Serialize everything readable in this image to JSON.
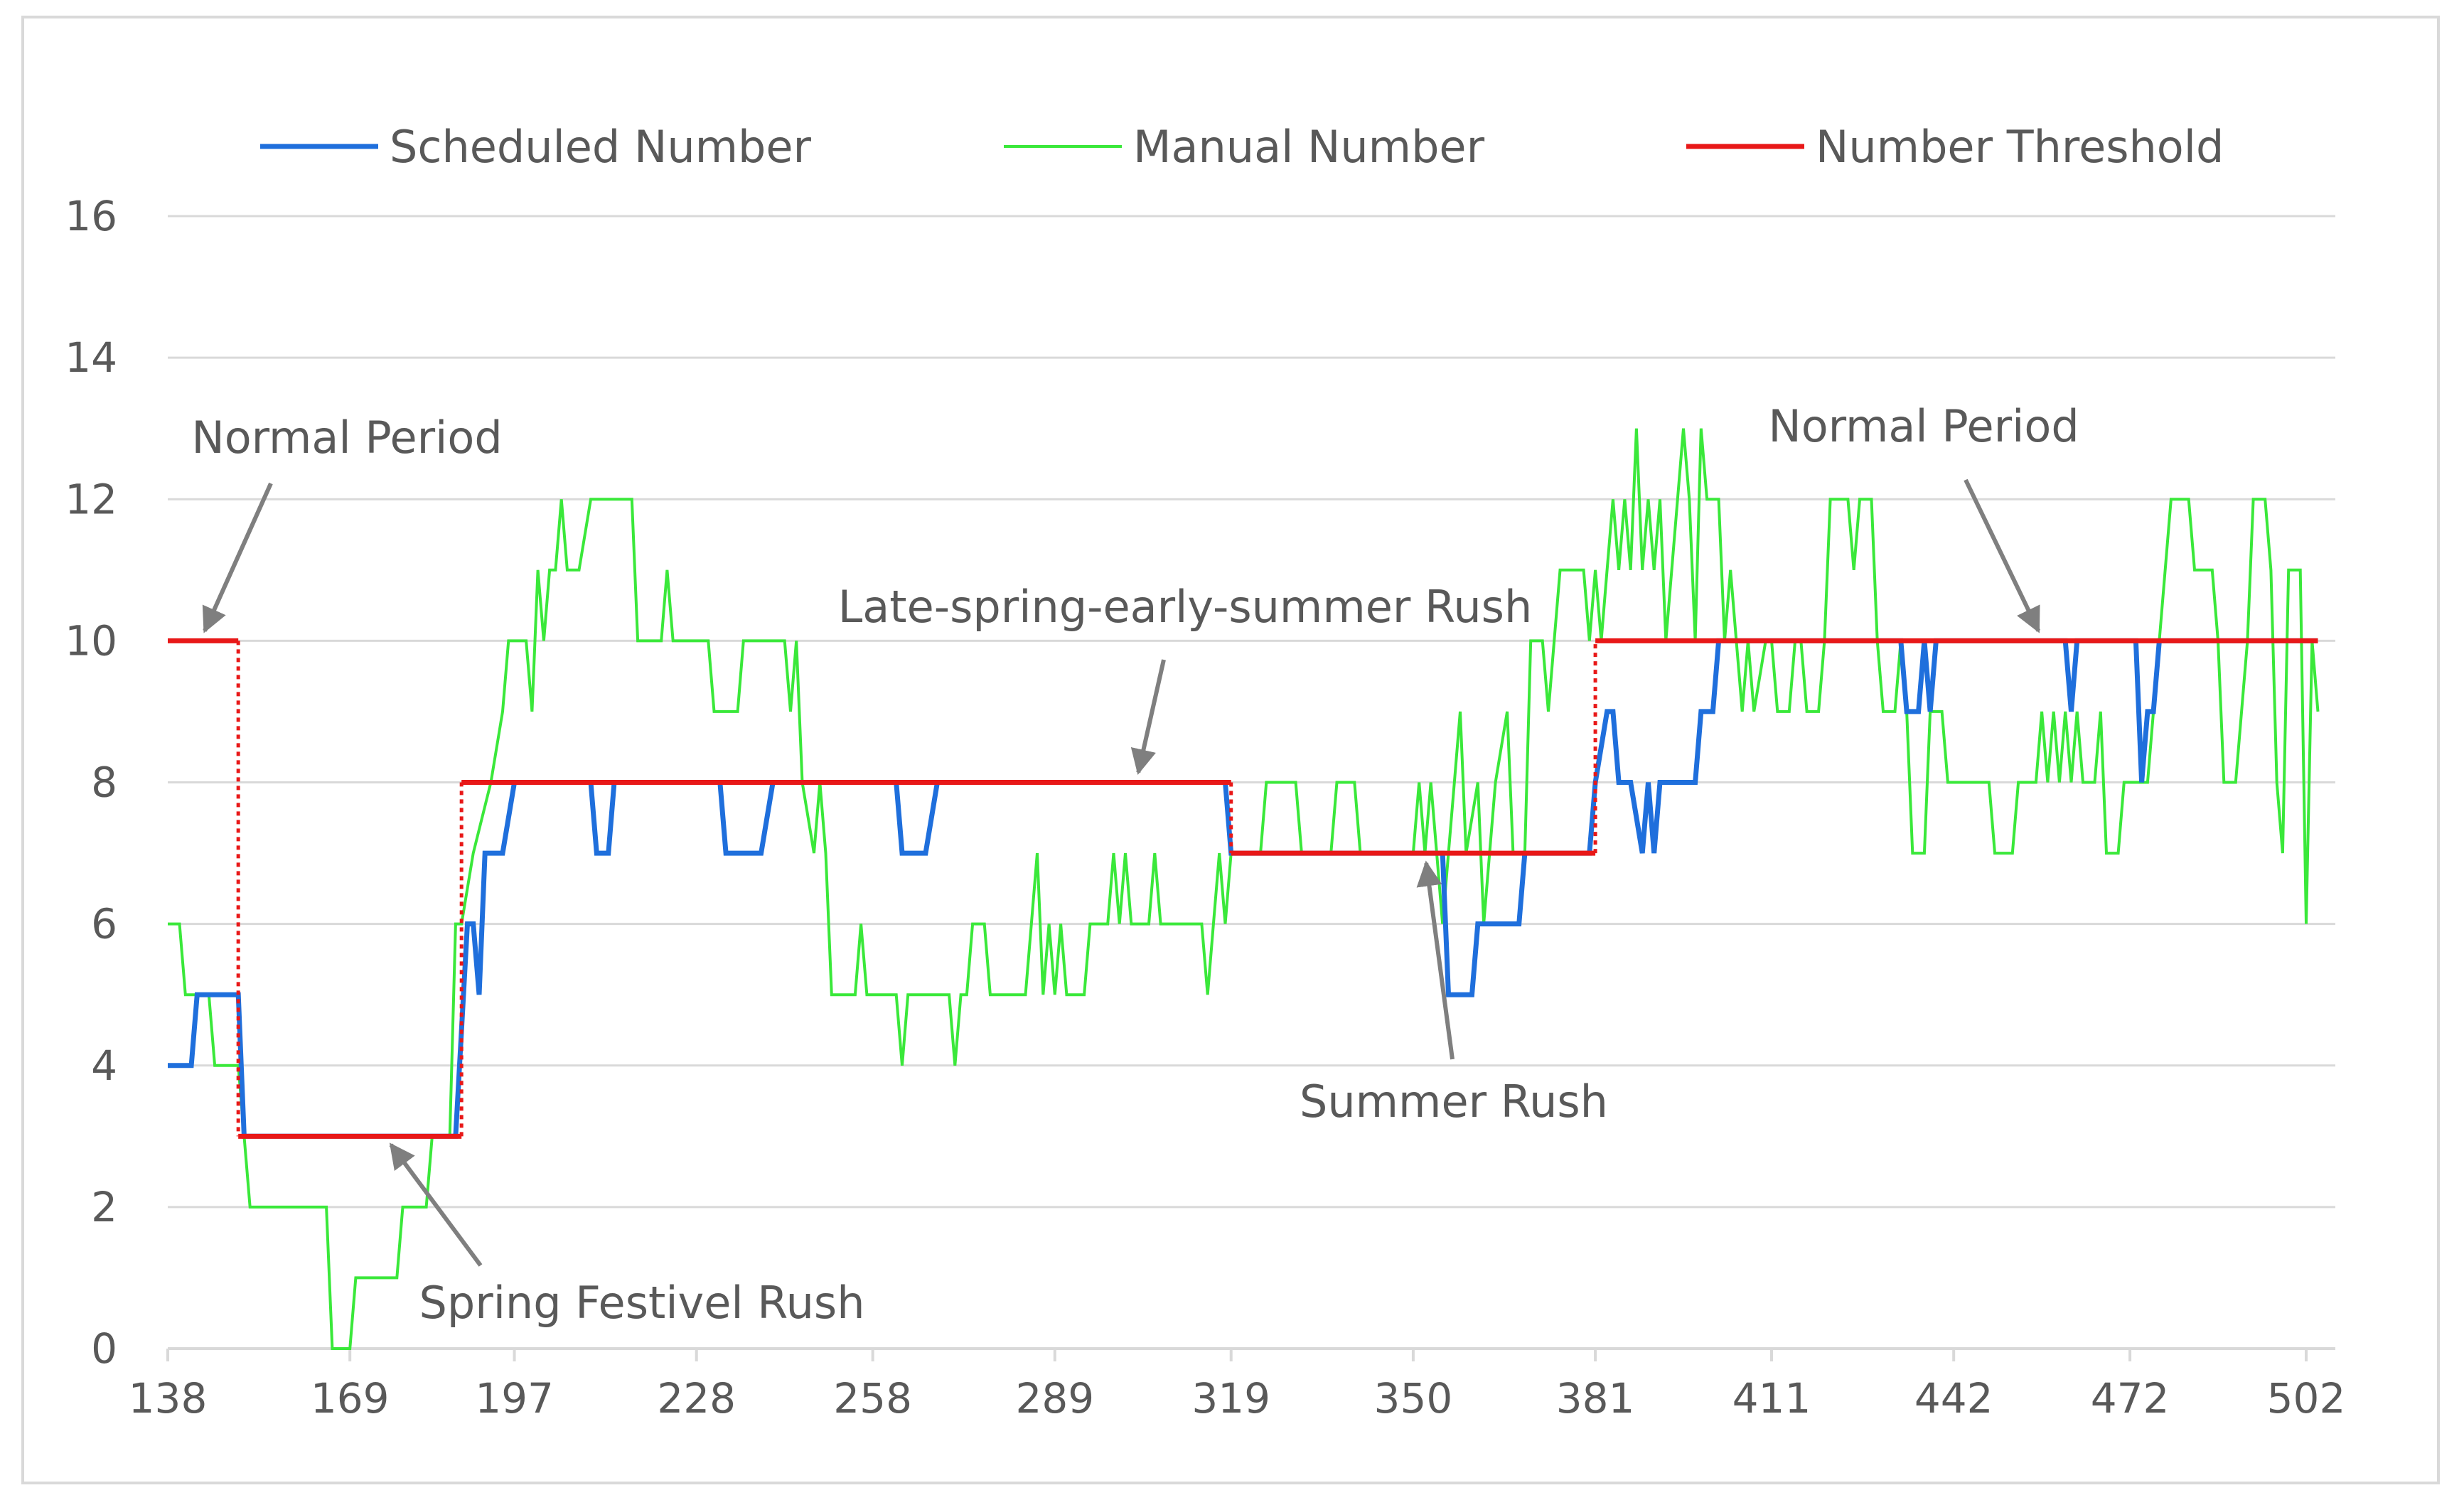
{
  "chart_data": {
    "type": "line",
    "title": "",
    "xlabel": "",
    "ylabel": "",
    "xlim": [
      138,
      505
    ],
    "ylim": [
      0,
      16
    ],
    "x_ticks": [
      138,
      169,
      197,
      228,
      258,
      289,
      319,
      350,
      381,
      411,
      442,
      472,
      502
    ],
    "y_ticks": [
      0,
      2,
      4,
      6,
      8,
      10,
      12,
      14,
      16
    ],
    "grid": "horizontal",
    "legend_position": "top",
    "series": [
      {
        "name": "Scheduled Number",
        "color": "#1f6fdc",
        "points": [
          [
            138,
            4
          ],
          [
            142,
            4
          ],
          [
            143,
            5
          ],
          [
            148,
            5
          ],
          [
            150,
            5
          ],
          [
            151,
            3
          ],
          [
            186,
            3
          ],
          [
            187,
            3
          ],
          [
            189,
            6
          ],
          [
            190,
            6
          ],
          [
            191,
            5
          ],
          [
            192,
            7
          ],
          [
            195,
            7
          ],
          [
            197,
            8
          ],
          [
            210,
            8
          ],
          [
            211,
            7
          ],
          [
            213,
            7
          ],
          [
            214,
            8
          ],
          [
            232,
            8
          ],
          [
            233,
            7
          ],
          [
            239,
            7
          ],
          [
            241,
            8
          ],
          [
            255,
            8
          ],
          [
            256,
            8
          ],
          [
            262,
            8
          ],
          [
            263,
            7
          ],
          [
            267,
            7
          ],
          [
            269,
            8
          ],
          [
            318,
            8
          ],
          [
            319,
            7
          ],
          [
            321,
            7
          ],
          [
            322,
            7
          ],
          [
            355,
            7
          ],
          [
            356,
            5
          ],
          [
            360,
            5
          ],
          [
            361,
            6
          ],
          [
            365,
            6
          ],
          [
            366,
            6
          ],
          [
            368,
            6
          ],
          [
            369,
            7
          ],
          [
            380,
            7
          ],
          [
            381,
            8
          ],
          [
            383,
            9
          ],
          [
            384,
            9
          ],
          [
            385,
            8
          ],
          [
            387,
            8
          ],
          [
            389,
            7
          ],
          [
            390,
            8
          ],
          [
            391,
            7
          ],
          [
            392,
            8
          ],
          [
            398,
            8
          ],
          [
            399,
            9
          ],
          [
            401,
            9
          ],
          [
            402,
            10
          ],
          [
            433,
            10
          ],
          [
            434,
            9
          ],
          [
            436,
            9
          ],
          [
            437,
            10
          ],
          [
            438,
            9
          ],
          [
            439,
            10
          ],
          [
            461,
            10
          ],
          [
            462,
            9
          ],
          [
            463,
            10
          ],
          [
            473,
            10
          ],
          [
            474,
            8
          ],
          [
            475,
            9
          ],
          [
            476,
            9
          ],
          [
            477,
            10
          ],
          [
            504,
            10
          ]
        ]
      },
      {
        "name": "Manual Number",
        "color": "#3ae83a",
        "points": [
          [
            138,
            6
          ],
          [
            140,
            6
          ],
          [
            141,
            5
          ],
          [
            145,
            5
          ],
          [
            146,
            4
          ],
          [
            150,
            4
          ],
          [
            151,
            3
          ],
          [
            152,
            2
          ],
          [
            165,
            2
          ],
          [
            166,
            0
          ],
          [
            169,
            0
          ],
          [
            170,
            1
          ],
          [
            177,
            1
          ],
          [
            178,
            2
          ],
          [
            182,
            2
          ],
          [
            183,
            3
          ],
          [
            186,
            3
          ],
          [
            187,
            6
          ],
          [
            188,
            6
          ],
          [
            190,
            7
          ],
          [
            193,
            8
          ],
          [
            195,
            9
          ],
          [
            196,
            10
          ],
          [
            199,
            10
          ],
          [
            200,
            9
          ],
          [
            201,
            11
          ],
          [
            202,
            10
          ],
          [
            203,
            11
          ],
          [
            204,
            11
          ],
          [
            205,
            12
          ],
          [
            206,
            11
          ],
          [
            208,
            11
          ],
          [
            210,
            12
          ],
          [
            217,
            12
          ],
          [
            218,
            10
          ],
          [
            222,
            10
          ],
          [
            223,
            11
          ],
          [
            224,
            10
          ],
          [
            225,
            10
          ],
          [
            230,
            10
          ],
          [
            231,
            9
          ],
          [
            235,
            9
          ],
          [
            236,
            10
          ],
          [
            243,
            10
          ],
          [
            244,
            9
          ],
          [
            245,
            10
          ],
          [
            246,
            8
          ],
          [
            248,
            7
          ],
          [
            249,
            8
          ],
          [
            250,
            7
          ],
          [
            251,
            5
          ],
          [
            255,
            5
          ],
          [
            256,
            6
          ],
          [
            257,
            5
          ],
          [
            262,
            5
          ],
          [
            263,
            4
          ],
          [
            264,
            5
          ],
          [
            271,
            5
          ],
          [
            272,
            4
          ],
          [
            273,
            5
          ],
          [
            274,
            5
          ],
          [
            275,
            6
          ],
          [
            277,
            6
          ],
          [
            278,
            5
          ],
          [
            284,
            5
          ],
          [
            285,
            6
          ],
          [
            286,
            7
          ],
          [
            287,
            5
          ],
          [
            288,
            6
          ],
          [
            289,
            5
          ],
          [
            290,
            6
          ],
          [
            291,
            5
          ],
          [
            294,
            5
          ],
          [
            295,
            6
          ],
          [
            298,
            6
          ],
          [
            299,
            7
          ],
          [
            300,
            6
          ],
          [
            301,
            7
          ],
          [
            302,
            6
          ],
          [
            305,
            6
          ],
          [
            306,
            7
          ],
          [
            307,
            6
          ],
          [
            314,
            6
          ],
          [
            315,
            5
          ],
          [
            316,
            6
          ],
          [
            317,
            7
          ],
          [
            318,
            6
          ],
          [
            319,
            7
          ],
          [
            324,
            7
          ],
          [
            325,
            8
          ],
          [
            330,
            8
          ],
          [
            331,
            7
          ],
          [
            336,
            7
          ],
          [
            337,
            8
          ],
          [
            340,
            8
          ],
          [
            341,
            7
          ],
          [
            346,
            7
          ],
          [
            347,
            7
          ],
          [
            350,
            7
          ],
          [
            351,
            8
          ],
          [
            352,
            7
          ],
          [
            353,
            8
          ],
          [
            355,
            6
          ],
          [
            357,
            8
          ],
          [
            358,
            9
          ],
          [
            359,
            7
          ],
          [
            361,
            8
          ],
          [
            362,
            6
          ],
          [
            364,
            8
          ],
          [
            366,
            9
          ],
          [
            367,
            7
          ],
          [
            369,
            7
          ],
          [
            370,
            10
          ],
          [
            372,
            10
          ],
          [
            373,
            9
          ],
          [
            374,
            10
          ],
          [
            375,
            11
          ],
          [
            379,
            11
          ],
          [
            380,
            10
          ],
          [
            381,
            11
          ],
          [
            382,
            10
          ],
          [
            383,
            11
          ],
          [
            384,
            12
          ],
          [
            385,
            11
          ],
          [
            386,
            12
          ],
          [
            387,
            11
          ],
          [
            388,
            13
          ],
          [
            389,
            11
          ],
          [
            390,
            12
          ],
          [
            391,
            11
          ],
          [
            392,
            12
          ],
          [
            393,
            10
          ],
          [
            396,
            13
          ],
          [
            397,
            12
          ],
          [
            398,
            10
          ],
          [
            399,
            13
          ],
          [
            400,
            12
          ],
          [
            402,
            12
          ],
          [
            403,
            10
          ],
          [
            404,
            11
          ],
          [
            405,
            10
          ],
          [
            406,
            9
          ],
          [
            407,
            10
          ],
          [
            408,
            9
          ],
          [
            410,
            10
          ],
          [
            411,
            10
          ],
          [
            412,
            9
          ],
          [
            414,
            9
          ],
          [
            415,
            10
          ],
          [
            416,
            10
          ],
          [
            417,
            9
          ],
          [
            419,
            9
          ],
          [
            420,
            10
          ],
          [
            421,
            12
          ],
          [
            424,
            12
          ],
          [
            425,
            11
          ],
          [
            426,
            12
          ],
          [
            428,
            12
          ],
          [
            429,
            10
          ],
          [
            430,
            9
          ],
          [
            432,
            9
          ],
          [
            433,
            10
          ],
          [
            434,
            9
          ],
          [
            435,
            7
          ],
          [
            437,
            7
          ],
          [
            438,
            9
          ],
          [
            440,
            9
          ],
          [
            441,
            8
          ],
          [
            448,
            8
          ],
          [
            449,
            7
          ],
          [
            452,
            7
          ],
          [
            453,
            8
          ],
          [
            456,
            8
          ],
          [
            457,
            9
          ],
          [
            458,
            8
          ],
          [
            459,
            9
          ],
          [
            460,
            8
          ],
          [
            461,
            9
          ],
          [
            462,
            8
          ],
          [
            463,
            9
          ],
          [
            464,
            8
          ],
          [
            466,
            8
          ],
          [
            467,
            9
          ],
          [
            468,
            7
          ],
          [
            470,
            7
          ],
          [
            471,
            8
          ],
          [
            475,
            8
          ],
          [
            477,
            10
          ],
          [
            479,
            12
          ],
          [
            482,
            12
          ],
          [
            483,
            11
          ],
          [
            486,
            11
          ],
          [
            487,
            10
          ],
          [
            488,
            8
          ],
          [
            490,
            8
          ],
          [
            492,
            10
          ],
          [
            493,
            12
          ],
          [
            495,
            12
          ],
          [
            496,
            11
          ],
          [
            497,
            8
          ],
          [
            498,
            7
          ],
          [
            499,
            11
          ],
          [
            501,
            11
          ],
          [
            502,
            6
          ],
          [
            503,
            10
          ],
          [
            504,
            9
          ]
        ]
      },
      {
        "name": "Number Threshold",
        "color": "#e81818",
        "points": [
          [
            138,
            10
          ],
          [
            150,
            10
          ],
          [
            150,
            3
          ],
          [
            188,
            3
          ],
          [
            188,
            8
          ],
          [
            319,
            8
          ],
          [
            319,
            7
          ],
          [
            381,
            7
          ],
          [
            381,
            10
          ],
          [
            504,
            10
          ]
        ]
      }
    ],
    "annotations": [
      {
        "text": "Normal Period",
        "target": [
          138,
          10
        ]
      },
      {
        "text": "Spring Festivel Rush",
        "target": [
          176,
          3
        ]
      },
      {
        "text": "Late-spring-early-summer Rush",
        "target": [
          302,
          8
        ]
      },
      {
        "text": "Summer Rush",
        "target": [
          351,
          7
        ]
      },
      {
        "text": "Normal Period",
        "target": [
          454,
          10
        ]
      }
    ]
  }
}
